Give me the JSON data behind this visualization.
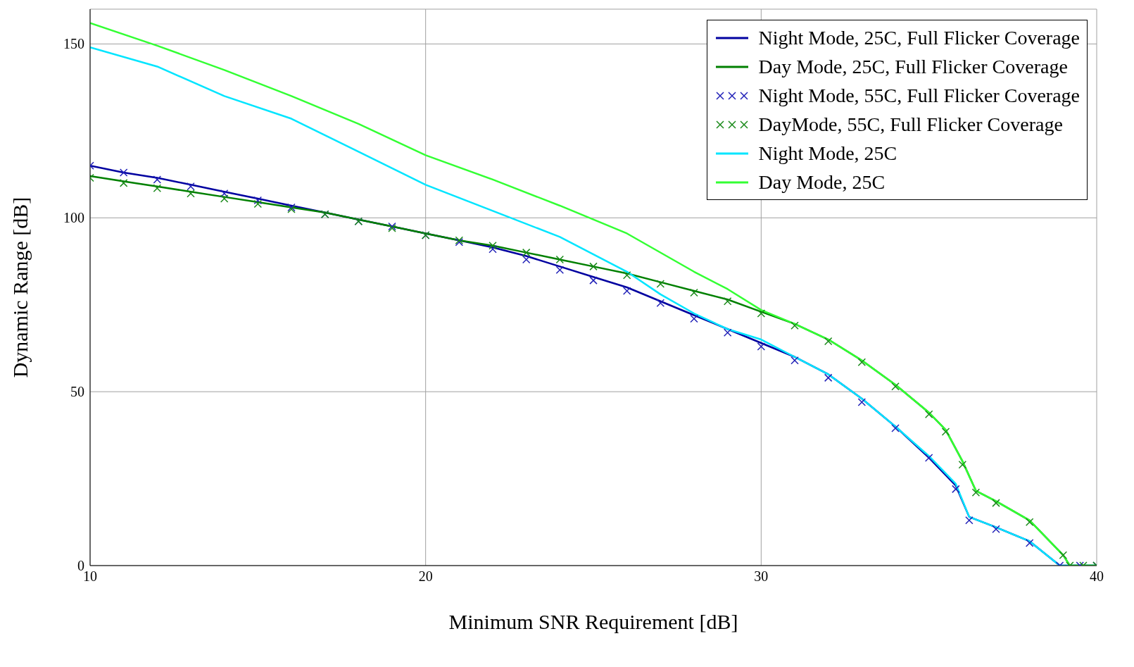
{
  "chart_data": {
    "type": "line",
    "xlabel": "Minimum SNR Requirement [dB]",
    "ylabel": "Dynamic Range [dB]",
    "xlim": [
      10,
      40
    ],
    "ylim": [
      0,
      160
    ],
    "xticks": [
      10,
      20,
      30,
      40
    ],
    "yticks": [
      0,
      50,
      100,
      150
    ],
    "grid": true,
    "legend": "top right",
    "line_style": "solid",
    "series": [
      {
        "name": "Night Mode, 25C, Full Flicker Coverage",
        "color": "#0000a0",
        "x": [
          10,
          11,
          12,
          13,
          14,
          15,
          16,
          17,
          18,
          19,
          20,
          21,
          22,
          23,
          24,
          25,
          26,
          27,
          28,
          29,
          30,
          31,
          32,
          33,
          34,
          35,
          35.8,
          36.2,
          37,
          38,
          38.9,
          39.5,
          40
        ],
        "values": [
          115,
          113,
          111.5,
          109.5,
          107.5,
          105.5,
          103.5,
          101.5,
          99.5,
          97.5,
          95.5,
          93.5,
          91.5,
          89,
          86,
          83,
          80,
          76,
          72,
          68,
          64,
          60,
          55,
          48,
          40,
          31,
          23,
          14,
          11,
          7,
          0,
          0,
          0
        ]
      },
      {
        "name": "Day Mode, 25C, Full Flicker Coverage",
        "color": "#008000",
        "x": [
          10,
          11,
          12,
          13,
          14,
          15,
          16,
          17,
          18,
          19,
          20,
          21,
          22,
          23,
          24,
          25,
          26,
          27,
          28,
          29,
          30,
          31,
          32,
          33,
          34,
          35,
          35.5,
          36,
          36.4,
          37,
          38,
          39,
          39.2,
          39.6,
          40
        ],
        "values": [
          112,
          110.5,
          109,
          107.5,
          106,
          104.5,
          103,
          101.5,
          99.5,
          97.5,
          95.5,
          93.5,
          92,
          90,
          88,
          86,
          84,
          81.5,
          79,
          76.5,
          73,
          69.5,
          65,
          59,
          52,
          44,
          39,
          30,
          21.5,
          18.5,
          13,
          3,
          0,
          0,
          0
        ]
      },
      {
        "name": "Night Mode, 55C, Full Flicker Coverage",
        "color": "#2222b8",
        "type": "scatter",
        "marker": "cross",
        "x": [
          10,
          11,
          12,
          13,
          14,
          15,
          16,
          17,
          18,
          19,
          20,
          21,
          22,
          23,
          24,
          25,
          26,
          27,
          28,
          29,
          30,
          31,
          32,
          33,
          34,
          35,
          35.8,
          36.2,
          37,
          38,
          38.9,
          39.5,
          40
        ],
        "values": [
          115,
          113,
          111,
          109,
          107,
          105,
          103,
          101,
          99,
          97.5,
          95,
          93,
          91,
          88,
          85,
          82,
          79,
          75.5,
          71,
          67,
          63,
          59,
          54,
          47,
          39.5,
          31,
          22,
          13,
          10.5,
          6.5,
          0,
          0,
          0
        ]
      },
      {
        "name": "DayMode, 55C, Full Flicker Coverage",
        "color": "#1a8a1a",
        "type": "scatter",
        "marker": "cross",
        "x": [
          10,
          11,
          12,
          13,
          14,
          15,
          16,
          17,
          18,
          19,
          20,
          21,
          22,
          23,
          24,
          25,
          26,
          27,
          28,
          29,
          30,
          31,
          32,
          33,
          34,
          35,
          35.5,
          36,
          36.4,
          37,
          38,
          39,
          39.2,
          39.6,
          40
        ],
        "values": [
          111.5,
          110,
          108.5,
          107,
          105.5,
          104,
          102.5,
          101,
          99,
          97,
          95,
          93.5,
          92,
          90,
          88,
          86,
          83.5,
          81,
          78.5,
          76,
          72.5,
          69,
          64.5,
          58.5,
          51.5,
          43.5,
          38.5,
          29,
          21,
          18,
          12.5,
          3,
          0,
          0,
          0
        ]
      },
      {
        "name": "Night Mode, 25C",
        "color": "#00e5ff",
        "x": [
          10,
          12,
          14,
          16,
          18,
          20,
          22,
          24,
          26,
          27,
          28,
          29,
          30,
          31,
          32,
          33,
          34,
          35,
          35.8,
          36.2,
          37,
          38,
          38.9,
          40
        ],
        "values": [
          149,
          143.5,
          135,
          128.5,
          119,
          109.5,
          102,
          94.5,
          84.5,
          78,
          72.5,
          68,
          65,
          60,
          55,
          48,
          40,
          31.5,
          23.5,
          14,
          11,
          7,
          0,
          0
        ]
      },
      {
        "name": "Day Mode, 25C",
        "color": "#33ff33",
        "x": [
          10,
          12,
          14,
          16,
          18,
          20,
          22,
          24,
          26,
          28,
          29,
          30,
          31,
          32,
          33,
          34,
          35,
          35.5,
          36,
          36.4,
          37,
          38,
          39,
          39.2,
          40
        ],
        "values": [
          156,
          149.5,
          142.5,
          135,
          127,
          118,
          111,
          103.5,
          95.5,
          84.5,
          79.5,
          73.5,
          69.5,
          65,
          59,
          52,
          44,
          39,
          30,
          21.5,
          18.5,
          13,
          3,
          0,
          0
        ]
      }
    ]
  }
}
